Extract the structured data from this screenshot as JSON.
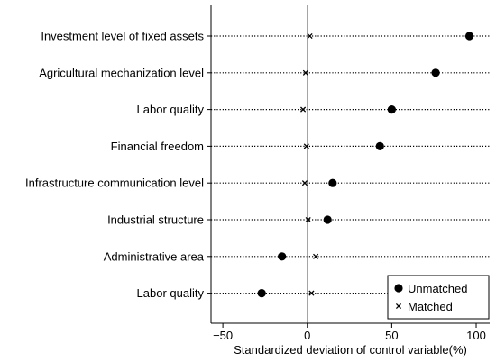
{
  "chart_data": {
    "type": "scatter",
    "categories": [
      "Investment level of fixed assets",
      "Agricultural mechanization level",
      "Labor quality",
      "Financial freedom",
      "Infrastructure communication level",
      "Industrial structure",
      "Administrative area",
      "Labor quality"
    ],
    "series": [
      {
        "name": "Unmatched",
        "marker": "circle",
        "values": [
          96,
          76,
          50,
          43,
          15,
          12,
          -15,
          -27
        ]
      },
      {
        "name": "Matched",
        "marker": "x",
        "values": [
          1.5,
          -1,
          -2.5,
          -0.5,
          -1.5,
          0.5,
          5,
          2.5
        ]
      }
    ],
    "xlabel": "Standardized deviation of control variable(%)",
    "ylabel": "",
    "xlim": [
      -57,
      108
    ],
    "xticks": [
      -50,
      0,
      50,
      100
    ],
    "xtick_labels": [
      "−50",
      "0",
      "50",
      "100"
    ],
    "reference_line": 0,
    "legend_position": "bottom-right",
    "colors": {
      "marker": "#000000",
      "guide": "#000000",
      "reference": "#888888"
    }
  }
}
